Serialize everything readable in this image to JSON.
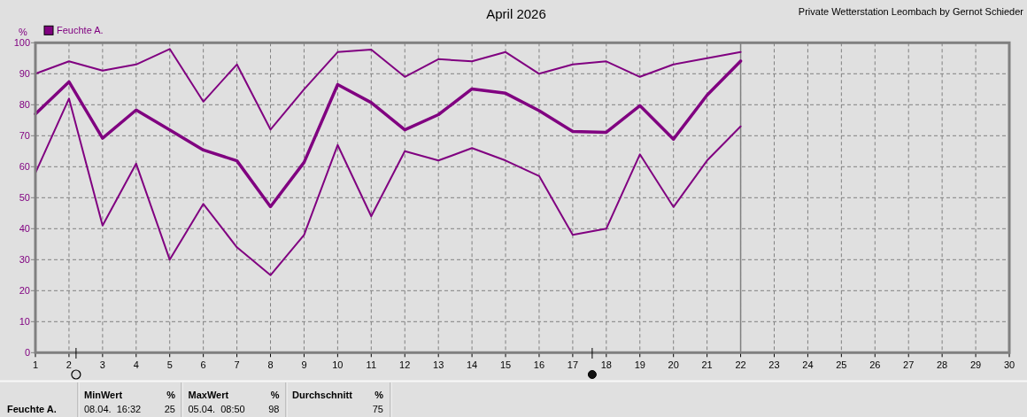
{
  "chart_data": {
    "type": "line",
    "title": "April 2026",
    "ylabel": "%",
    "annotations": [
      "Private Wetterstation Leombach by Gernot Schieder",
      "MinWert",
      "%",
      "08.04.  16:32",
      "25",
      "MaxWert",
      "%",
      "05.04.  08:50",
      "98",
      "Durchschnitt",
      "%",
      "75"
    ],
    "x": [
      1,
      2,
      3,
      4,
      5,
      6,
      7,
      8,
      9,
      10,
      11,
      12,
      13,
      14,
      15,
      16,
      17,
      18,
      19,
      20,
      21,
      22
    ],
    "xlim": [
      1,
      30
    ],
    "xticks": [
      1,
      2,
      3,
      4,
      5,
      6,
      7,
      8,
      9,
      10,
      11,
      12,
      13,
      14,
      15,
      16,
      17,
      18,
      19,
      20,
      21,
      22,
      23,
      24,
      25,
      26,
      27,
      28,
      29,
      30
    ],
    "ylim": [
      0,
      100
    ],
    "yticks": [
      0,
      10,
      20,
      30,
      40,
      50,
      60,
      70,
      80,
      90,
      100
    ],
    "grid": true,
    "legend": "top left",
    "series": [
      {
        "color": "#800080",
        "values": [
          90,
          94,
          91,
          93,
          98,
          81,
          93,
          72,
          85,
          97,
          97.8,
          89,
          94.7,
          94,
          97,
          90,
          93,
          94,
          89,
          93,
          95,
          97
        ]
      },
      {
        "name": "Feuchte A.",
        "color": "#800080",
        "values": [
          77,
          87.4,
          69.2,
          78.3,
          71.9,
          65.4,
          61.9,
          47.1,
          61.4,
          86.5,
          80.7,
          71.9,
          76.8,
          85.1,
          83.7,
          78.1,
          71.4,
          71.1,
          79.7,
          68.9,
          83.1,
          94.1
        ]
      },
      {
        "color": "#800080",
        "values": [
          58,
          82,
          41,
          61,
          30,
          48,
          34,
          25,
          38,
          67,
          44,
          65,
          62,
          66,
          62,
          57,
          38,
          40,
          64,
          47,
          62,
          73
        ]
      }
    ],
    "ref_lines": [
      {
        "axis": "x",
        "value": 22,
        "color": "#808080",
        "line_style": "solid"
      }
    ]
  }
}
